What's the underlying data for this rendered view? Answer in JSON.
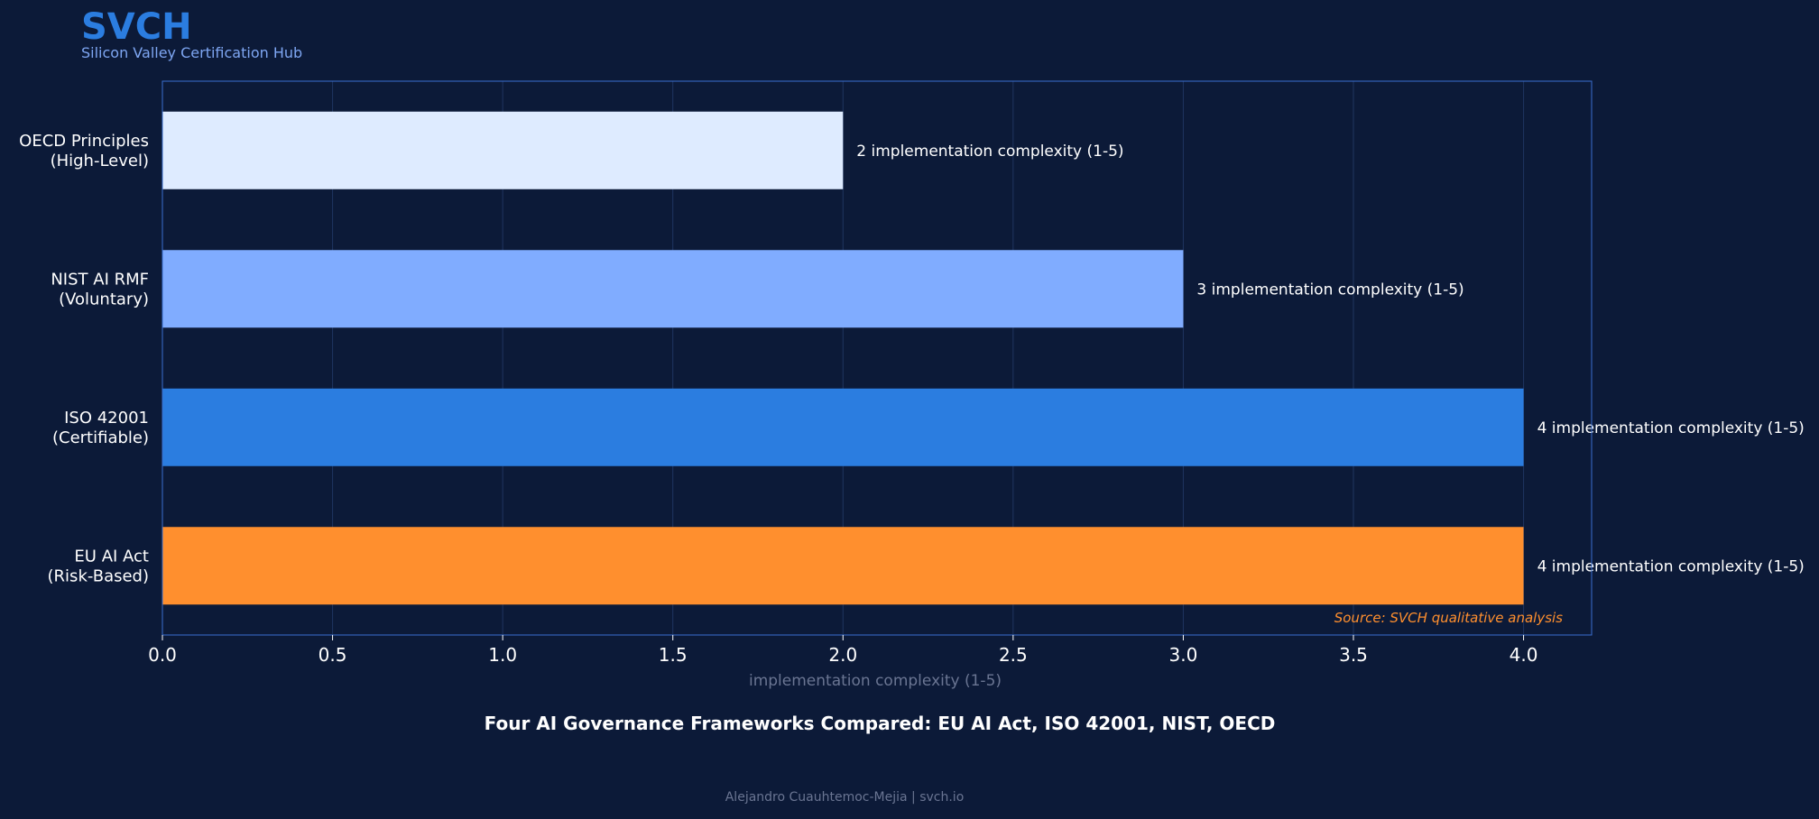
{
  "brand": {
    "name": "SVCH",
    "tagline": "Silicon Valley Certification Hub"
  },
  "chart_data": {
    "type": "bar",
    "orientation": "horizontal",
    "title": "Four AI Governance Frameworks Compared: EU AI Act, ISO 42001, NIST, OECD",
    "xlabel": "implementation complexity (1-5)",
    "ylabel": "",
    "xlim": [
      0,
      4.2
    ],
    "x_ticks": [
      "0.0",
      "0.5",
      "1.0",
      "1.5",
      "2.0",
      "2.5",
      "3.0",
      "3.5",
      "4.0"
    ],
    "grid": "vertical",
    "categories": [
      [
        "OECD Principles",
        "(High-Level)"
      ],
      [
        "NIST AI RMF",
        "(Voluntary)"
      ],
      [
        "ISO 42001",
        "(Certifiable)"
      ],
      [
        "EU AI Act",
        "(Risk-Based)"
      ]
    ],
    "values": [
      2,
      3,
      4,
      4
    ],
    "bar_colors": [
      "#deebff",
      "#80acff",
      "#2b7de0",
      "#ff8f2e"
    ],
    "data_labels": [
      "2 implementation complexity (1-5)",
      "3 implementation complexity (1-5)",
      "4 implementation complexity (1-5)",
      "4 implementation complexity (1-5)"
    ],
    "annotation": "Source: SVCH qualitative analysis"
  },
  "footer": {
    "credit": "Alejandro Cuauhtemoc-Mejia  |  svch.io"
  },
  "colors": {
    "background": "#0c1a38",
    "accent": "#2b7de0",
    "frame": "#3a6fcf",
    "grid": "#1f3560",
    "annotation": "#ff8f2e",
    "muted": "#6a7592"
  }
}
